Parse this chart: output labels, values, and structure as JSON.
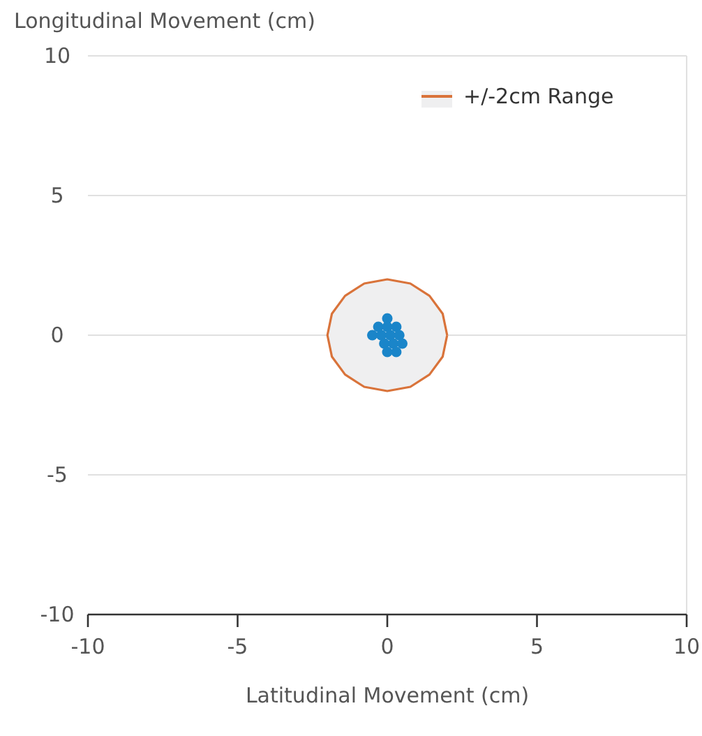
{
  "chart_data": {
    "type": "scatter",
    "xlabel": "Latitudinal Movement (cm)",
    "ylabel": "Longitudinal Movement (cm)",
    "xlim": [
      -10,
      10
    ],
    "ylim": [
      -10,
      10
    ],
    "xticks": [
      -10,
      -5,
      0,
      5,
      10
    ],
    "yticks": [
      -10,
      -5,
      0,
      5,
      10
    ],
    "grid": "y",
    "legend": "top right",
    "series": [
      {
        "name": "+/-2cm Range",
        "type": "area",
        "color": "#d9733a",
        "x": [
          2,
          1.85,
          1.41,
          0.77,
          0,
          -0.77,
          -1.41,
          -1.85,
          -2,
          -1.85,
          -1.41,
          -0.77,
          0,
          0.77,
          1.41,
          1.85,
          2
        ],
        "values": [
          0,
          0.77,
          1.41,
          1.85,
          2,
          1.85,
          1.41,
          0.77,
          0,
          -0.77,
          -1.41,
          -1.85,
          -2,
          -1.85,
          -1.41,
          -0.77,
          0
        ]
      },
      {
        "color": "#1a85c9",
        "marker": "circle",
        "x": [
          -0.5,
          -0.3,
          0,
          0,
          0.3,
          -0.2,
          0.1,
          0.4,
          -0.1,
          0.2,
          0.5,
          0.3,
          0
        ],
        "values": [
          0,
          0.3,
          0.6,
          0.3,
          0.3,
          0,
          0,
          0,
          -0.3,
          -0.3,
          -0.3,
          -0.6,
          -0.6
        ]
      }
    ]
  }
}
